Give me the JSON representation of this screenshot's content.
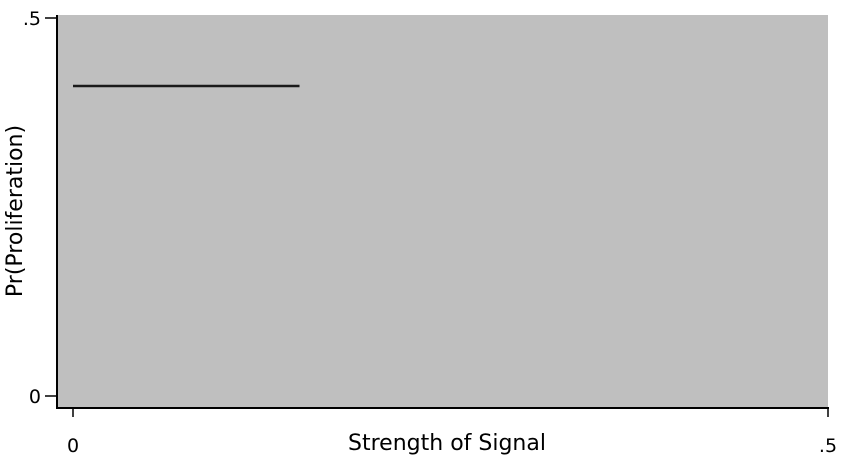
{
  "chart_data": {
    "type": "line",
    "title": "",
    "xlabel": "Strength of Signal",
    "ylabel": "Pr(Proliferation)",
    "xlim": [
      0,
      0.5
    ],
    "ylim": [
      0,
      0.5
    ],
    "x_ticks": [
      {
        "value": 0,
        "label": "0"
      },
      {
        "value": 0.5,
        "label": ".5"
      }
    ],
    "y_ticks": [
      {
        "value": 0,
        "label": "0"
      },
      {
        "value": 0.5,
        "label": ".5"
      }
    ],
    "grid": false,
    "legend": "none",
    "series": [
      {
        "x": [
          0,
          0.15
        ],
        "y": [
          0.41,
          0.41
        ]
      }
    ],
    "colors": {
      "plot_background": "#bfbfbf",
      "line": "#1a1a1a",
      "axis": "#000000"
    }
  }
}
